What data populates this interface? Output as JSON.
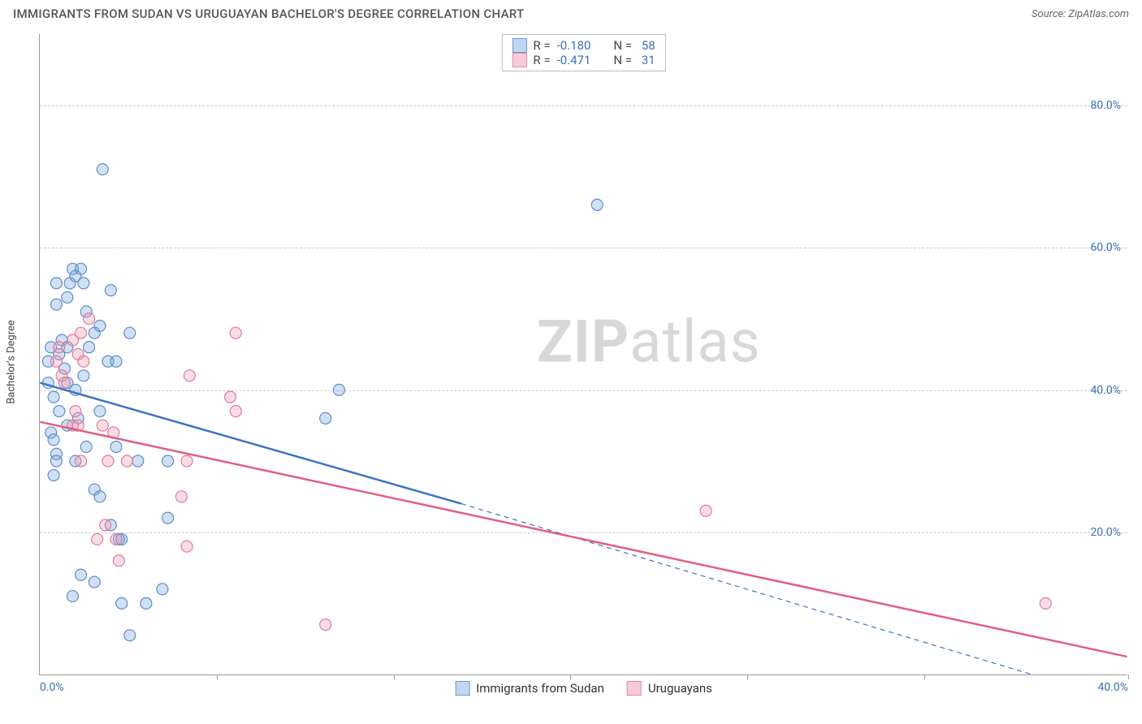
{
  "header": {
    "title": "IMMIGRANTS FROM SUDAN VS URUGUAYAN BACHELOR'S DEGREE CORRELATION CHART",
    "source": "Source: ZipAtlas.com"
  },
  "watermark": {
    "bold": "ZIP",
    "rest": "atlas"
  },
  "chart": {
    "type": "scatter",
    "ylabel": "Bachelor's Degree",
    "background_color": "#ffffff",
    "grid_color": "#cccccc",
    "axis_color": "#999999",
    "xlim": [
      0,
      40
    ],
    "ylim": [
      0,
      90
    ],
    "y_ticks": [
      {
        "value": 20,
        "label": "20.0%"
      },
      {
        "value": 40,
        "label": "40.0%"
      },
      {
        "value": 60,
        "label": "60.0%"
      },
      {
        "value": 80,
        "label": "80.0%"
      }
    ],
    "x_tick_positions": [
      6.5,
      13,
      19.5,
      26,
      32.5,
      40
    ],
    "x_tick_labels": [
      {
        "value": 0,
        "label": "0.0%"
      },
      {
        "value": 40,
        "label": "40.0%"
      }
    ],
    "ytick_color": "#3b6fb5",
    "xtick_color": "#3b6fb5",
    "marker_radius": 7,
    "series": [
      {
        "name": "Immigrants from Sudan",
        "color_fill": "#7aa7db",
        "color_stroke": "#5d8ecb",
        "class": "blue",
        "R": "-0.180",
        "N": "58",
        "regression": {
          "solid": {
            "x1": 0,
            "y1": 41,
            "x2": 15.5,
            "y2": 24
          },
          "dashed": {
            "x1": 15.5,
            "y1": 24,
            "x2": 36.5,
            "y2": 0
          },
          "stroke": "#3d72c2",
          "width": 2.5
        },
        "points": [
          [
            0.3,
            41
          ],
          [
            0.3,
            44
          ],
          [
            0.4,
            46
          ],
          [
            0.5,
            39
          ],
          [
            0.6,
            55
          ],
          [
            0.6,
            52
          ],
          [
            0.7,
            45
          ],
          [
            0.8,
            47
          ],
          [
            0.4,
            34
          ],
          [
            0.5,
            33
          ],
          [
            0.6,
            31
          ],
          [
            0.7,
            37
          ],
          [
            0.6,
            30
          ],
          [
            0.5,
            28
          ],
          [
            0.9,
            43
          ],
          [
            1.0,
            46
          ],
          [
            1.0,
            53
          ],
          [
            1.1,
            55
          ],
          [
            1.2,
            57
          ],
          [
            1.3,
            56
          ],
          [
            1.5,
            57
          ],
          [
            1.6,
            55
          ],
          [
            1.7,
            51
          ],
          [
            1.8,
            46
          ],
          [
            2.3,
            71
          ],
          [
            2.0,
            48
          ],
          [
            2.2,
            49
          ],
          [
            2.5,
            44
          ],
          [
            3.3,
            48
          ],
          [
            2.8,
            44
          ],
          [
            2.6,
            54
          ],
          [
            2.2,
            37
          ],
          [
            2.8,
            32
          ],
          [
            1.3,
            30
          ],
          [
            1.0,
            35
          ],
          [
            1.6,
            42
          ],
          [
            1.3,
            40
          ],
          [
            1.0,
            41
          ],
          [
            1.4,
            36
          ],
          [
            1.7,
            32
          ],
          [
            2.0,
            26
          ],
          [
            2.2,
            25
          ],
          [
            2.6,
            21
          ],
          [
            2.9,
            19
          ],
          [
            3.0,
            10
          ],
          [
            3.9,
            10
          ],
          [
            4.5,
            12
          ],
          [
            3.3,
            5.5
          ],
          [
            3.0,
            19
          ],
          [
            2.0,
            13
          ],
          [
            1.2,
            11
          ],
          [
            1.5,
            14
          ],
          [
            4.7,
            22
          ],
          [
            4.7,
            30
          ],
          [
            11.0,
            40
          ],
          [
            10.5,
            36
          ],
          [
            20.5,
            66
          ],
          [
            3.6,
            30
          ]
        ]
      },
      {
        "name": "Uruguayans",
        "color_fill": "#ef9eb3",
        "color_stroke": "#e47a97",
        "class": "pink",
        "R": "-0.471",
        "N": "31",
        "regression": {
          "solid": {
            "x1": 0,
            "y1": 35.5,
            "x2": 40,
            "y2": 2.5
          },
          "stroke": "#e05f83",
          "width": 2.5
        },
        "points": [
          [
            0.6,
            44
          ],
          [
            0.7,
            46
          ],
          [
            0.8,
            42
          ],
          [
            0.9,
            41
          ],
          [
            1.2,
            47
          ],
          [
            1.4,
            45
          ],
          [
            1.5,
            48
          ],
          [
            1.6,
            44
          ],
          [
            1.8,
            50
          ],
          [
            1.2,
            35
          ],
          [
            1.4,
            35
          ],
          [
            1.5,
            30
          ],
          [
            2.3,
            35
          ],
          [
            2.5,
            30
          ],
          [
            2.7,
            34
          ],
          [
            3.2,
            30
          ],
          [
            1.3,
            37
          ],
          [
            2.1,
            19
          ],
          [
            2.4,
            21
          ],
          [
            2.8,
            19
          ],
          [
            2.9,
            16
          ],
          [
            5.4,
            30
          ],
          [
            5.2,
            25
          ],
          [
            5.4,
            18
          ],
          [
            5.5,
            42
          ],
          [
            7.2,
            48
          ],
          [
            7.2,
            37
          ],
          [
            7.0,
            39
          ],
          [
            10.5,
            7
          ],
          [
            24.5,
            23
          ],
          [
            37.0,
            10
          ]
        ]
      }
    ],
    "legend_top_labels": {
      "R": "R =",
      "N": "N ="
    },
    "legend_bottom": [
      {
        "class": "blue",
        "label": "Immigrants from Sudan"
      },
      {
        "class": "pink",
        "label": "Uruguayans"
      }
    ]
  }
}
